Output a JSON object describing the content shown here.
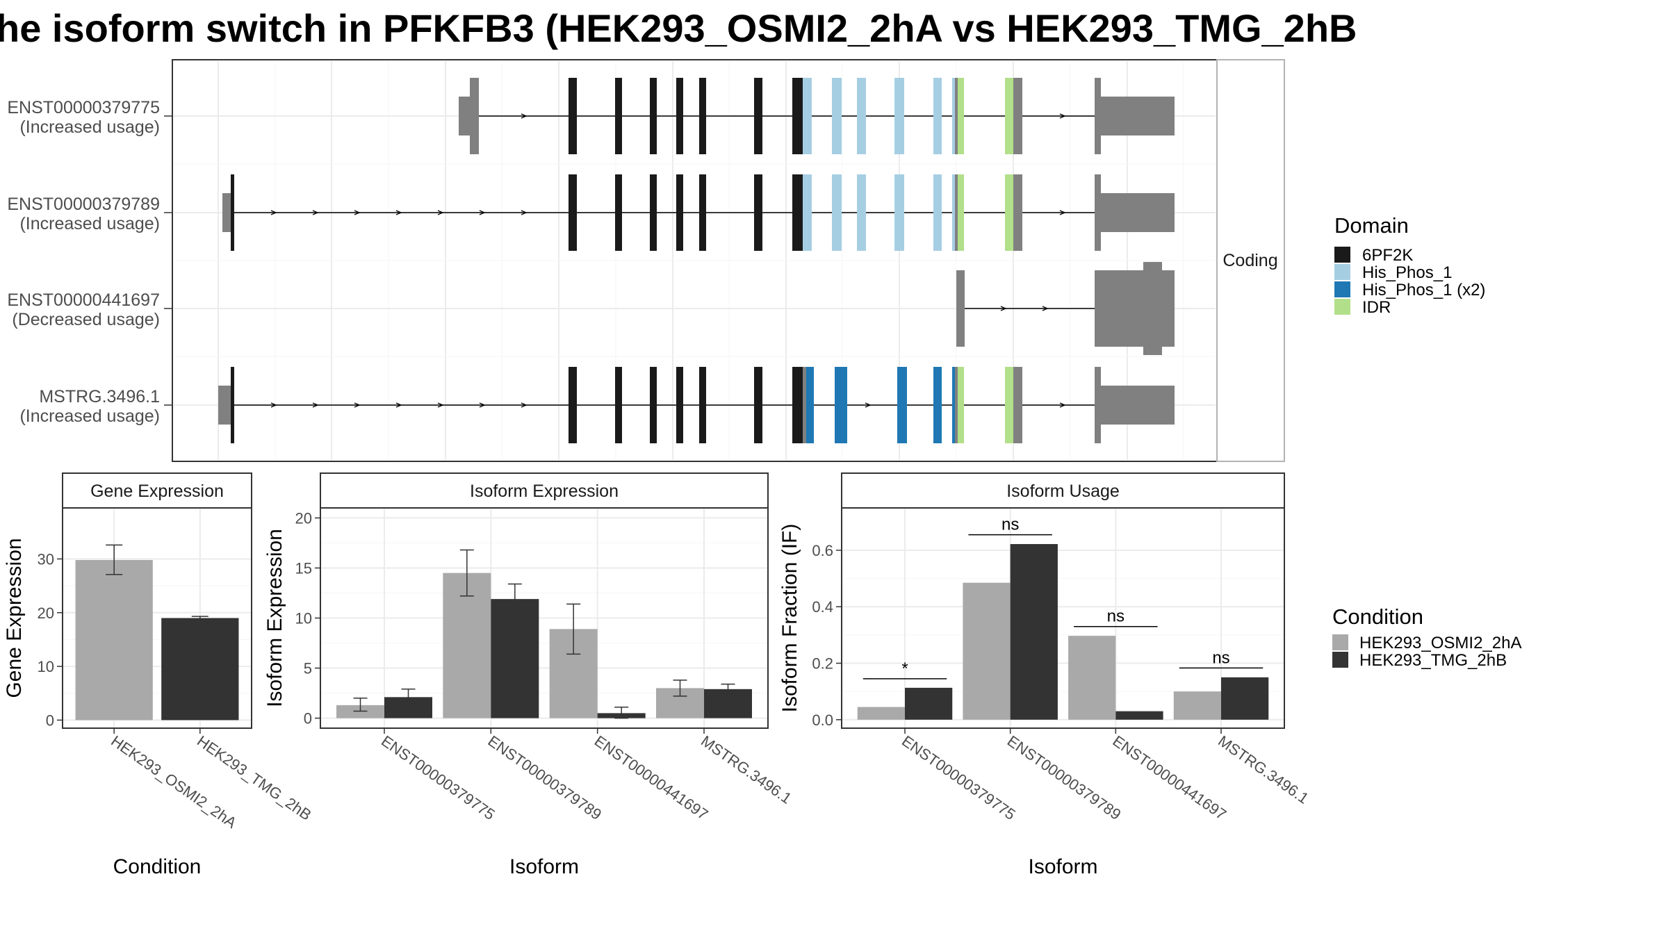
{
  "title": "he isoform switch in PFKFB3 (HEK293_OSMI2_2hA vs HEK293_TMG_2hB",
  "colors": {
    "6PF2K": "#1a1a1a",
    "His_Phos_1": "#a6cee3",
    "His_Phos_1 (x2)": "#1f78b4",
    "IDR": "#b2df8a",
    "none": "#808080",
    "HEK293_OSMI2_2hA": "#a9a9a9",
    "HEK293_TMG_2hB": "#333333"
  },
  "chart_data": [
    {
      "type": "gene-structure",
      "facet_label": "Coding",
      "transcripts": [
        {
          "id": "ENST00000379775",
          "status": "(Increased usage)",
          "blocks": [
            {
              "start": 660,
              "end": 676,
              "domain": "none",
              "h": "utr"
            },
            {
              "start": 676,
              "end": 689,
              "domain": "none",
              "h": "cds"
            },
            {
              "start": 818,
              "end": 830,
              "domain": "6PF2K",
              "h": "cds"
            },
            {
              "start": 885,
              "end": 895,
              "domain": "6PF2K",
              "h": "cds"
            },
            {
              "start": 935,
              "end": 945,
              "domain": "6PF2K",
              "h": "cds"
            },
            {
              "start": 973,
              "end": 983,
              "domain": "6PF2K",
              "h": "cds"
            },
            {
              "start": 1006,
              "end": 1016,
              "domain": "6PF2K",
              "h": "cds"
            },
            {
              "start": 1085,
              "end": 1097,
              "domain": "6PF2K",
              "h": "cds"
            },
            {
              "start": 1140,
              "end": 1155,
              "domain": "6PF2K",
              "h": "cds"
            },
            {
              "start": 1155,
              "end": 1168,
              "domain": "His_Phos_1",
              "h": "cds"
            },
            {
              "start": 1197,
              "end": 1211,
              "domain": "His_Phos_1",
              "h": "cds"
            },
            {
              "start": 1233,
              "end": 1246,
              "domain": "His_Phos_1",
              "h": "cds"
            },
            {
              "start": 1287,
              "end": 1301,
              "domain": "His_Phos_1",
              "h": "cds"
            },
            {
              "start": 1343,
              "end": 1355,
              "domain": "His_Phos_1",
              "h": "cds"
            },
            {
              "start": 1370,
              "end": 1374,
              "domain": "His_Phos_1",
              "h": "cds"
            },
            {
              "start": 1374,
              "end": 1378,
              "domain": "none",
              "h": "cds"
            },
            {
              "start": 1378,
              "end": 1387,
              "domain": "IDR",
              "h": "cds"
            },
            {
              "start": 1446,
              "end": 1458,
              "domain": "IDR",
              "h": "cds"
            },
            {
              "start": 1458,
              "end": 1471,
              "domain": "none",
              "h": "cds"
            },
            {
              "start": 1575,
              "end": 1584,
              "domain": "none",
              "h": "cds"
            },
            {
              "start": 1584,
              "end": 1690,
              "domain": "none",
              "h": "utr"
            }
          ],
          "arrows": [
            755,
            1530
          ]
        },
        {
          "id": "ENST00000379789",
          "status": "(Increased usage)",
          "blocks": [
            {
              "start": 320,
              "end": 332,
              "domain": "none",
              "h": "utr"
            },
            {
              "start": 332,
              "end": 337,
              "domain": "6PF2K",
              "h": "cds"
            },
            {
              "start": 818,
              "end": 830,
              "domain": "6PF2K",
              "h": "cds"
            },
            {
              "start": 885,
              "end": 895,
              "domain": "6PF2K",
              "h": "cds"
            },
            {
              "start": 935,
              "end": 945,
              "domain": "6PF2K",
              "h": "cds"
            },
            {
              "start": 973,
              "end": 983,
              "domain": "6PF2K",
              "h": "cds"
            },
            {
              "start": 1006,
              "end": 1016,
              "domain": "6PF2K",
              "h": "cds"
            },
            {
              "start": 1085,
              "end": 1097,
              "domain": "6PF2K",
              "h": "cds"
            },
            {
              "start": 1140,
              "end": 1155,
              "domain": "6PF2K",
              "h": "cds"
            },
            {
              "start": 1155,
              "end": 1168,
              "domain": "His_Phos_1",
              "h": "cds"
            },
            {
              "start": 1197,
              "end": 1211,
              "domain": "His_Phos_1",
              "h": "cds"
            },
            {
              "start": 1233,
              "end": 1246,
              "domain": "His_Phos_1",
              "h": "cds"
            },
            {
              "start": 1287,
              "end": 1301,
              "domain": "His_Phos_1",
              "h": "cds"
            },
            {
              "start": 1343,
              "end": 1355,
              "domain": "His_Phos_1",
              "h": "cds"
            },
            {
              "start": 1370,
              "end": 1374,
              "domain": "His_Phos_1",
              "h": "cds"
            },
            {
              "start": 1374,
              "end": 1378,
              "domain": "none",
              "h": "cds"
            },
            {
              "start": 1378,
              "end": 1387,
              "domain": "IDR",
              "h": "cds"
            },
            {
              "start": 1446,
              "end": 1458,
              "domain": "IDR",
              "h": "cds"
            },
            {
              "start": 1458,
              "end": 1471,
              "domain": "none",
              "h": "cds"
            },
            {
              "start": 1575,
              "end": 1584,
              "domain": "none",
              "h": "cds"
            },
            {
              "start": 1584,
              "end": 1690,
              "domain": "none",
              "h": "utr"
            }
          ],
          "arrows": [
            395,
            455,
            515,
            575,
            635,
            695,
            755,
            1530
          ]
        },
        {
          "id": "ENST00000441697",
          "status": "(Decreased usage)",
          "blocks": [
            {
              "start": 1376,
              "end": 1388,
              "domain": "none",
              "h": "cds"
            },
            {
              "start": 1575,
              "end": 1645,
              "domain": "none",
              "h": "cds"
            },
            {
              "start": 1645,
              "end": 1672,
              "domain": "none",
              "h": "tall"
            },
            {
              "start": 1672,
              "end": 1690,
              "domain": "none",
              "h": "cds"
            }
          ],
          "arrows": [
            1445,
            1505
          ]
        },
        {
          "id": "MSTRG.3496.1",
          "status": "(Increased usage)",
          "blocks": [
            {
              "start": 314,
              "end": 332,
              "domain": "none",
              "h": "utr"
            },
            {
              "start": 332,
              "end": 337,
              "domain": "6PF2K",
              "h": "cds"
            },
            {
              "start": 818,
              "end": 830,
              "domain": "6PF2K",
              "h": "cds"
            },
            {
              "start": 885,
              "end": 895,
              "domain": "6PF2K",
              "h": "cds"
            },
            {
              "start": 935,
              "end": 945,
              "domain": "6PF2K",
              "h": "cds"
            },
            {
              "start": 973,
              "end": 983,
              "domain": "6PF2K",
              "h": "cds"
            },
            {
              "start": 1006,
              "end": 1016,
              "domain": "6PF2K",
              "h": "cds"
            },
            {
              "start": 1085,
              "end": 1097,
              "domain": "6PF2K",
              "h": "cds"
            },
            {
              "start": 1140,
              "end": 1155,
              "domain": "6PF2K",
              "h": "cds"
            },
            {
              "start": 1155,
              "end": 1160,
              "domain": "none",
              "h": "cds"
            },
            {
              "start": 1160,
              "end": 1171,
              "domain": "His_Phos_1 (x2)",
              "h": "cds"
            },
            {
              "start": 1201,
              "end": 1219,
              "domain": "His_Phos_1 (x2)",
              "h": "cds"
            },
            {
              "start": 1291,
              "end": 1305,
              "domain": "His_Phos_1 (x2)",
              "h": "cds"
            },
            {
              "start": 1343,
              "end": 1355,
              "domain": "His_Phos_1 (x2)",
              "h": "cds"
            },
            {
              "start": 1370,
              "end": 1374,
              "domain": "His_Phos_1 (x2)",
              "h": "cds"
            },
            {
              "start": 1374,
              "end": 1378,
              "domain": "none",
              "h": "cds"
            },
            {
              "start": 1378,
              "end": 1387,
              "domain": "IDR",
              "h": "cds"
            },
            {
              "start": 1446,
              "end": 1458,
              "domain": "IDR",
              "h": "cds"
            },
            {
              "start": 1458,
              "end": 1471,
              "domain": "none",
              "h": "cds"
            },
            {
              "start": 1575,
              "end": 1584,
              "domain": "none",
              "h": "cds"
            },
            {
              "start": 1584,
              "end": 1690,
              "domain": "none",
              "h": "utr"
            }
          ],
          "arrows": [
            395,
            455,
            515,
            575,
            635,
            695,
            755,
            1250,
            1530
          ]
        }
      ],
      "legend": {
        "title": "Domain",
        "items": [
          "6PF2K",
          "His_Phos_1",
          "His_Phos_1 (x2)",
          "IDR"
        ],
        "position": "right"
      }
    },
    {
      "type": "bar",
      "strip": "Gene Expression",
      "xlabel": "Condition",
      "ylabel": "Gene Expression",
      "categories": [
        "HEK293_OSMI2_2hA",
        "HEK293_TMG_2hB"
      ],
      "values": [
        29.8,
        19.0
      ],
      "errors": [
        [
          27.1,
          32.6
        ],
        [
          18.6,
          19.3
        ]
      ],
      "ylim": [
        -1.5,
        39.5
      ],
      "yticks": [
        0,
        10,
        20,
        30
      ]
    },
    {
      "type": "bar",
      "strip": "Isoform Expression",
      "xlabel": "Isoform",
      "ylabel": "Isoform Expression",
      "categories": [
        "ENST00000379775",
        "ENST00000379789",
        "ENST00000441697",
        "MSTRG.3496.1"
      ],
      "series": [
        {
          "name": "HEK293_OSMI2_2hA",
          "values": [
            1.3,
            14.5,
            8.9,
            3.0
          ],
          "errors": [
            [
              0.7,
              2.0
            ],
            [
              12.2,
              16.8
            ],
            [
              6.4,
              11.4
            ],
            [
              2.2,
              3.8
            ]
          ]
        },
        {
          "name": "HEK293_TMG_2hB",
          "values": [
            2.1,
            11.9,
            0.5,
            2.9
          ],
          "errors": [
            [
              1.3,
              2.9
            ],
            [
              10.4,
              13.4
            ],
            [
              0.0,
              1.1
            ],
            [
              2.4,
              3.4
            ]
          ]
        }
      ],
      "ylim": [
        -1.0,
        21.0
      ],
      "yticks": [
        0,
        5,
        10,
        15,
        20
      ]
    },
    {
      "type": "bar",
      "strip": "Isoform Usage",
      "xlabel": "Isoform",
      "ylabel": "Isoform Fraction (IF)",
      "categories": [
        "ENST00000379775",
        "ENST00000379789",
        "ENST00000441697",
        "MSTRG.3496.1"
      ],
      "series": [
        {
          "name": "HEK293_OSMI2_2hA",
          "values": [
            0.045,
            0.485,
            0.297,
            0.1
          ]
        },
        {
          "name": "HEK293_TMG_2hB",
          "values": [
            0.113,
            0.622,
            0.03,
            0.15
          ]
        }
      ],
      "significance": [
        {
          "label": "*",
          "y": 0.145
        },
        {
          "label": "ns",
          "y": 0.655
        },
        {
          "label": "ns",
          "y": 0.33
        },
        {
          "label": "ns",
          "y": 0.183
        }
      ],
      "ylim": [
        -0.03,
        0.75
      ],
      "yticks": [
        "0.0",
        "0.2",
        "0.4",
        "0.6"
      ]
    }
  ],
  "condition_legend": {
    "title": "Condition",
    "items": [
      "HEK293_OSMI2_2hA",
      "HEK293_TMG_2hB"
    ],
    "position": "right"
  }
}
